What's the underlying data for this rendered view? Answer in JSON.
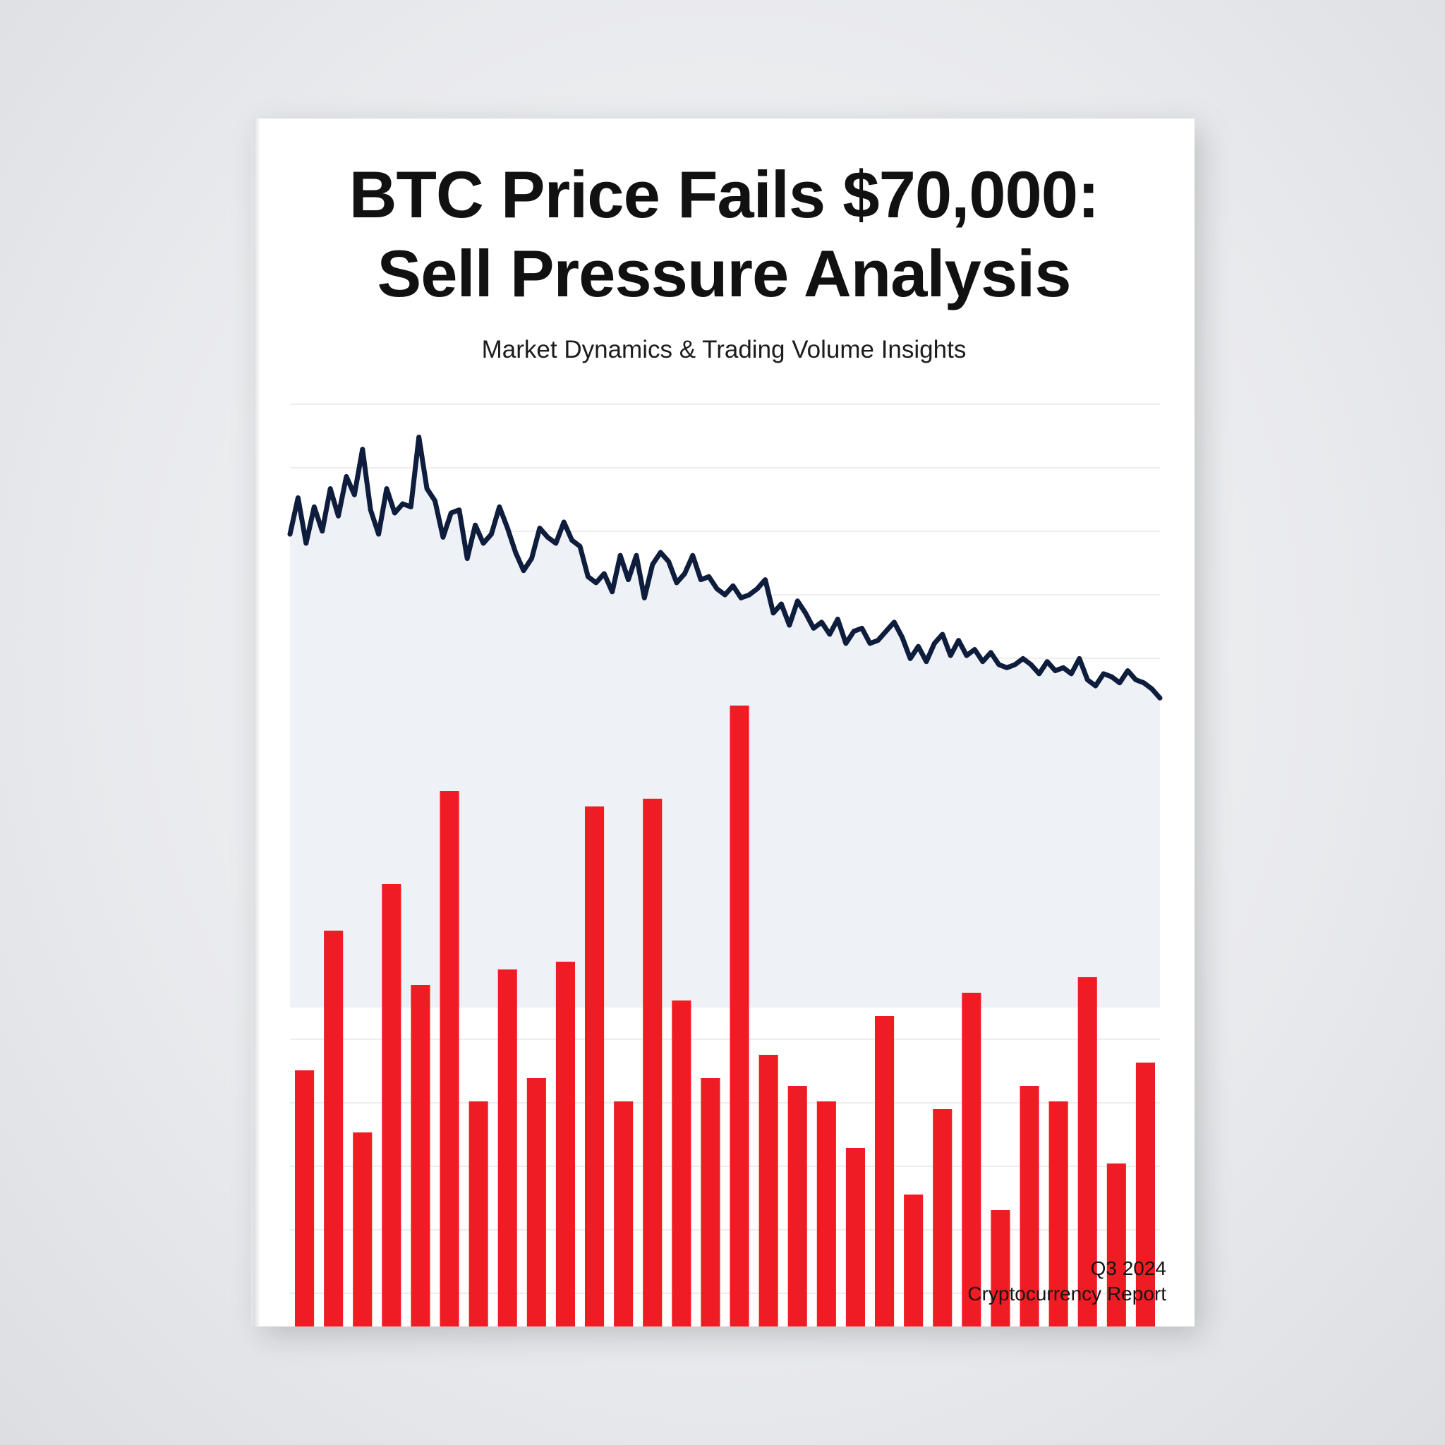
{
  "cover": {
    "title_line1": "BTC Price Fails $70,000:",
    "title_line2": "Sell Pressure Analysis",
    "subtitle": "Market Dynamics & Trading Volume Insights",
    "period": "Q3 2024",
    "report_type": "Cryptocurrency Report"
  },
  "colors": {
    "price_line": "#0f1d3d",
    "volume_bar": "#f01c24",
    "area_fill": "#eef1f6",
    "grid": "#e6e7ea"
  },
  "chart_data": {
    "type": "line",
    "grid": true,
    "ylim": [
      0,
      100
    ],
    "price_series": {
      "values": [
        63,
        75,
        60,
        72,
        64,
        78,
        69,
        82,
        76,
        91,
        71,
        63,
        78,
        70,
        73,
        72,
        95,
        78,
        74,
        62,
        70,
        71,
        55,
        66,
        60,
        63,
        72,
        65,
        57,
        51,
        55,
        65,
        62,
        60,
        67,
        61,
        59,
        49,
        47,
        50,
        44,
        56,
        48,
        56,
        42,
        53,
        57,
        54,
        47,
        50,
        56,
        48,
        49,
        45,
        43,
        46,
        42,
        43,
        45,
        48,
        37,
        40,
        33,
        41,
        37,
        32,
        34,
        30,
        35,
        27,
        31,
        32,
        27,
        28,
        31,
        34,
        29,
        22,
        26,
        21,
        27,
        30,
        23,
        28,
        23,
        25,
        21,
        24,
        20,
        19,
        20,
        22,
        20,
        17,
        21,
        18,
        19,
        17,
        22,
        15,
        13,
        17,
        16,
        14,
        18,
        15,
        14,
        12,
        9
      ]
    },
    "volume_bars": {
      "values": [
        33,
        51,
        25,
        57,
        44,
        69,
        29,
        46,
        32,
        47,
        67,
        29,
        68,
        42,
        32,
        80,
        35,
        31,
        29,
        23,
        40,
        17,
        28,
        43,
        15,
        31,
        29,
        45,
        21,
        34
      ]
    }
  }
}
